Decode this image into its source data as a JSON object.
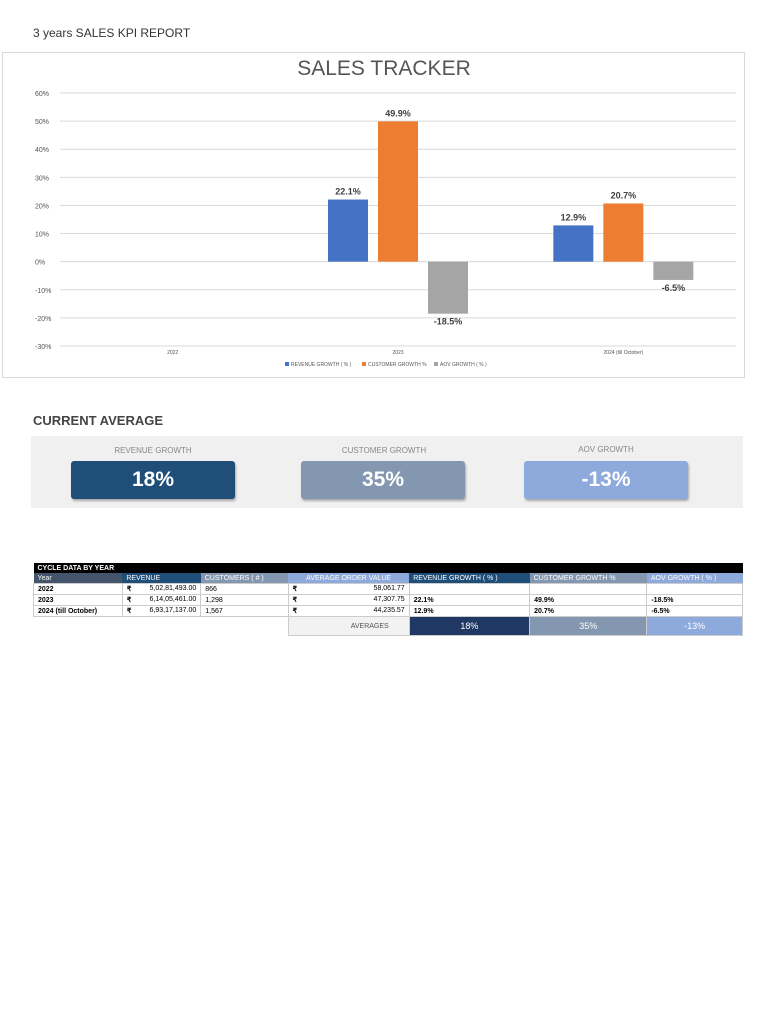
{
  "report_title": "3 years SALES KPI REPORT",
  "chart_data": {
    "type": "bar",
    "title": "SALES TRACKER",
    "categories": [
      "2022",
      "2023",
      "2024 (till October)"
    ],
    "series": [
      {
        "name": "REVENUE GROWTH ( % )",
        "color": "#4472C4",
        "values": [
          null,
          22.1,
          12.9
        ]
      },
      {
        "name": "CUSTOMER GROWTH %",
        "color": "#ED7D31",
        "values": [
          null,
          49.9,
          20.7
        ]
      },
      {
        "name": "AOV GROWTH ( % )",
        "color": "#A5A5A5",
        "values": [
          null,
          -18.5,
          -6.5
        ]
      }
    ],
    "data_labels": [
      [
        null,
        "22.1%",
        "12.9%"
      ],
      [
        null,
        "49.9%",
        "20.7%"
      ],
      [
        null,
        "-18.5%",
        "-6.5%"
      ]
    ],
    "ylim": [
      -30,
      60
    ],
    "yticks": [
      "60%",
      "50%",
      "40%",
      "30%",
      "20%",
      "10%",
      "0%",
      "-10%",
      "-20%",
      "-30%"
    ],
    "grid": true,
    "legend": "bottom"
  },
  "current_average": {
    "title": "CURRENT AVERAGE",
    "items": [
      {
        "label": "REVENUE GROWTH",
        "value": "18%",
        "color": "#1F4E79"
      },
      {
        "label": "CUSTOMER GROWTH",
        "value": "35%",
        "color": "#8497B0"
      },
      {
        "label": "AOV GROWTH",
        "value": "-13%",
        "color": "#8EA9DB"
      }
    ]
  },
  "table": {
    "title": "CYCLE DATA BY YEAR",
    "headers": [
      "Year",
      "REVENUE",
      "CUSTOMERS ( # )",
      "AVERAGE ORDER VALUE",
      "REVENUE GROWTH ( % )",
      "CUSTOMER GROWTH %",
      "AOV GROWTH ( % )"
    ],
    "currency": "₹",
    "rows": [
      [
        "2022",
        "5,02,81,493.00",
        "866",
        "58,061.77",
        "",
        "",
        ""
      ],
      [
        "2023",
        "6,14,05,461.00",
        "1,298",
        "47,307.75",
        "22.1%",
        "49.9%",
        "-18.5%"
      ],
      [
        "2024 (till October)",
        "6,93,17,137.00",
        "1,567",
        "44,235.57",
        "12.9%",
        "20.7%",
        "-6.5%"
      ]
    ],
    "averages_label": "AVERAGES",
    "averages": [
      "18%",
      "35%",
      "-13%"
    ]
  }
}
